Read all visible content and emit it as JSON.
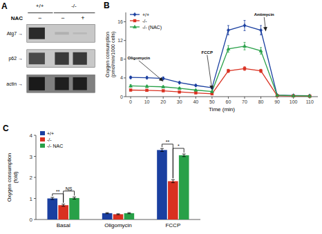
{
  "chart_data": [
    {
      "type": "blot",
      "title": "A",
      "groups": [
        "+/+",
        "-/-"
      ],
      "xlabel": "NAC",
      "categories": [
        "−",
        "−",
        "+"
      ],
      "rows": [
        "Atg7 →",
        "p62 →",
        "actin →"
      ]
    },
    {
      "type": "line",
      "title": "B",
      "x": [
        0,
        10,
        20,
        30,
        40,
        50,
        60,
        70,
        80,
        90,
        100,
        110
      ],
      "xlabel": "Time (min)",
      "ylabel": "Oxygen consumption\n(pmol/min/1000 cells)",
      "xlim": [
        -3,
        115
      ],
      "xticks": [
        0,
        10,
        20,
        30,
        40,
        50,
        60,
        70,
        80,
        90,
        100,
        110
      ],
      "ylim": [
        0,
        18
      ],
      "yticks": [
        0,
        4,
        8,
        12,
        16
      ],
      "legend": "upper left",
      "series": [
        {
          "name": "+/+",
          "color": "#1a3fa0",
          "marker": "diamond",
          "values": [
            4.1,
            4.05,
            3.9,
            3.0,
            2.4,
            1.9,
            14.2,
            15.2,
            14.2,
            0.3,
            0.25,
            0.2
          ],
          "errors": [
            0.25,
            0.25,
            0.3,
            0.2,
            0.2,
            0.2,
            1.0,
            1.1,
            1.0,
            0.1,
            0.1,
            0.1
          ]
        },
        {
          "name": "-/-",
          "color": "#d93020",
          "marker": "square",
          "values": [
            1.4,
            1.35,
            1.25,
            1.0,
            0.8,
            0.6,
            5.5,
            6.0,
            5.5,
            0.2,
            0.15,
            0.1
          ],
          "errors": [
            0.15,
            0.15,
            0.15,
            0.1,
            0.1,
            0.08,
            0.35,
            0.4,
            0.35,
            0.05,
            0.05,
            0.05
          ]
        },
        {
          "name": "-/- (NAC)",
          "color": "#28a048",
          "marker": "triangle",
          "values": [
            2.3,
            2.2,
            2.1,
            1.8,
            1.4,
            1.1,
            10.2,
            10.8,
            9.8,
            0.3,
            0.2,
            0.15
          ],
          "errors": [
            0.25,
            0.25,
            0.2,
            0.18,
            0.15,
            0.12,
            0.7,
            0.8,
            0.7,
            0.1,
            0.08,
            0.08
          ]
        }
      ],
      "annotations": [
        {
          "text": "Oligomycin",
          "x": 20,
          "y": 3.3,
          "text_x": 5,
          "text_y": 8.0
        },
        {
          "text": "FCCP",
          "x": 50,
          "y": 1.5,
          "text_x": 47,
          "text_y": 9.2
        },
        {
          "text": "Antimycin",
          "x": 83,
          "y": 14.0,
          "text_x": 82,
          "text_y": 17.3
        }
      ]
    },
    {
      "type": "bar",
      "title": "C",
      "categories": [
        "Basal",
        "Oligomycin",
        "FCCP"
      ],
      "ylabel": "Oxygen consumption\n(fold)",
      "ylim": [
        0,
        4
      ],
      "yticks": [
        0,
        1,
        2,
        3,
        4
      ],
      "legend": "upper left",
      "series": [
        {
          "name": "+/+",
          "color": "#1a3fa0",
          "values": [
            1.0,
            0.3,
            3.3
          ],
          "errors": [
            0.05,
            0.025,
            0.07
          ]
        },
        {
          "name": "-/-",
          "color": "#d93020",
          "values": [
            0.68,
            0.25,
            1.82
          ],
          "errors": [
            0.05,
            0.02,
            0.07
          ]
        },
        {
          "name": "-/- NAC",
          "color": "#28a048",
          "values": [
            1.02,
            0.3,
            3.05
          ],
          "errors": [
            0.05,
            0.025,
            0.06
          ]
        }
      ],
      "annotations": [
        {
          "text": "**",
          "category": 0,
          "between": [
            0,
            1
          ],
          "y": 1.22
        },
        {
          "text": "NS",
          "category": 0,
          "between": [
            1,
            2
          ],
          "y": 1.35
        },
        {
          "text": "**",
          "category": 2,
          "between": [
            0,
            1
          ],
          "y": 3.58
        },
        {
          "text": "*",
          "category": 2,
          "between": [
            1,
            2
          ],
          "y": 3.38
        }
      ]
    }
  ]
}
